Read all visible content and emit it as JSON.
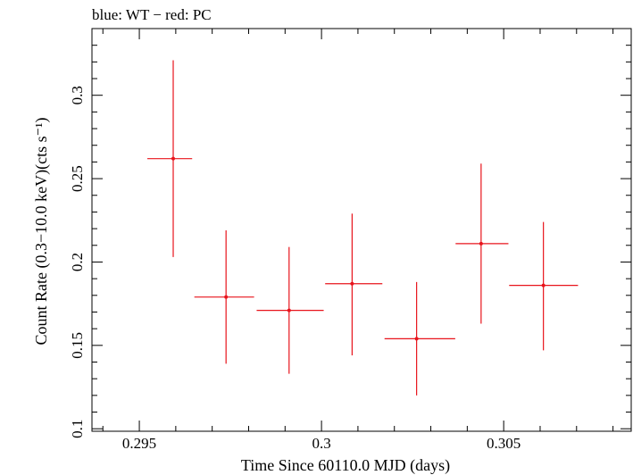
{
  "chart_data": {
    "type": "scatter",
    "title": "blue: WT − red: PC",
    "xlabel": "Time Since 60110.0 MJD (days)",
    "ylabel": "Count Rate (0.3−10.0 keV)(cts s⁻¹)",
    "xlim": [
      0.2937,
      0.3085
    ],
    "ylim": [
      0.0985,
      0.34
    ],
    "x_ticks": [
      {
        "value": 0.295,
        "label": "0.295"
      },
      {
        "value": 0.3,
        "label": "0.3"
      },
      {
        "value": 0.305,
        "label": "0.305"
      }
    ],
    "y_ticks": [
      {
        "value": 0.1,
        "label": "0.1"
      },
      {
        "value": 0.15,
        "label": "0.15"
      },
      {
        "value": 0.2,
        "label": "0.2"
      },
      {
        "value": 0.25,
        "label": "0.25"
      },
      {
        "value": 0.3,
        "label": "0.3"
      }
    ],
    "grid": false,
    "series": [
      {
        "color": "#e8141c",
        "points": [
          {
            "x": 0.29593,
            "x_lo": 0.29522,
            "x_hi": 0.29645,
            "y": 0.262,
            "y_lo": 0.203,
            "y_hi": 0.321
          },
          {
            "x": 0.29738,
            "x_lo": 0.29651,
            "x_hi": 0.29815,
            "y": 0.179,
            "y_lo": 0.139,
            "y_hi": 0.219
          },
          {
            "x": 0.29911,
            "x_lo": 0.29822,
            "x_hi": 0.30006,
            "y": 0.171,
            "y_lo": 0.133,
            "y_hi": 0.209
          },
          {
            "x": 0.30084,
            "x_lo": 0.3001,
            "x_hi": 0.30167,
            "y": 0.187,
            "y_lo": 0.144,
            "y_hi": 0.229
          },
          {
            "x": 0.30261,
            "x_lo": 0.30173,
            "x_hi": 0.30367,
            "y": 0.154,
            "y_lo": 0.12,
            "y_hi": 0.188
          },
          {
            "x": 0.30438,
            "x_lo": 0.30368,
            "x_hi": 0.30513,
            "y": 0.211,
            "y_lo": 0.163,
            "y_hi": 0.259
          },
          {
            "x": 0.30609,
            "x_lo": 0.30515,
            "x_hi": 0.30704,
            "y": 0.186,
            "y_lo": 0.147,
            "y_hi": 0.224
          }
        ]
      }
    ]
  }
}
